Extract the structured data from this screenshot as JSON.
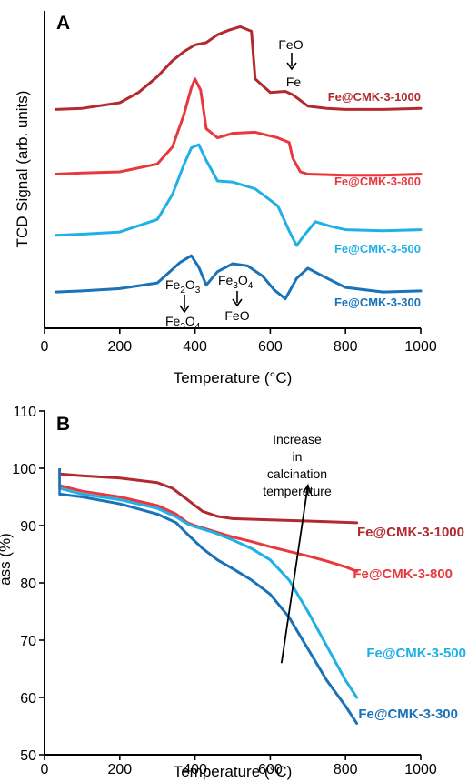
{
  "colors": {
    "fe1000": "#b22a2e",
    "fe800": "#e8373d",
    "fe500": "#1fb0e6",
    "fe300": "#1a72b8",
    "axis": "#000000"
  },
  "chart_data": [
    {
      "panel": "A",
      "type": "line",
      "xlabel": "Temperature (°C)",
      "ylabel": "TCD Signal (arb. units)",
      "xlim": [
        0,
        1000
      ],
      "xticks": [
        0,
        200,
        400,
        600,
        800,
        1000
      ],
      "yticks_shown": false,
      "y_units": "arbitrary, curves vertically offset",
      "series": [
        {
          "name": "Fe@CMK-3-1000",
          "color": "#b22a2e",
          "x": [
            30,
            100,
            200,
            250,
            300,
            340,
            370,
            400,
            430,
            460,
            490,
            520,
            550,
            560,
            600,
            640,
            660,
            700,
            750,
            800,
            900,
            1000
          ],
          "y": [
            12.05,
            12.1,
            12.35,
            12.8,
            13.5,
            14.2,
            14.6,
            14.9,
            15.0,
            15.35,
            15.55,
            15.7,
            15.5,
            13.4,
            12.8,
            12.85,
            12.7,
            12.2,
            12.1,
            12.05,
            12.05,
            12.1
          ]
        },
        {
          "name": "Fe@CMK-3-800",
          "color": "#e8373d",
          "x": [
            30,
            100,
            200,
            300,
            340,
            370,
            390,
            400,
            415,
            430,
            460,
            500,
            560,
            620,
            650,
            660,
            680,
            700,
            800,
            900,
            1000
          ],
          "y": [
            9.2,
            9.25,
            9.3,
            9.65,
            10.4,
            11.8,
            13.0,
            13.4,
            12.9,
            11.2,
            10.8,
            11.0,
            11.05,
            10.8,
            10.6,
            9.9,
            9.3,
            9.2,
            9.15,
            9.15,
            9.2
          ]
        },
        {
          "name": "Fe@CMK-3-500",
          "color": "#1fb0e6",
          "x": [
            30,
            100,
            200,
            300,
            340,
            370,
            390,
            410,
            430,
            460,
            500,
            560,
            620,
            650,
            670,
            690,
            720,
            760,
            800,
            900,
            1000
          ],
          "y": [
            6.5,
            6.55,
            6.65,
            7.2,
            8.3,
            9.6,
            10.35,
            10.5,
            9.8,
            8.9,
            8.85,
            8.55,
            7.8,
            6.7,
            6.05,
            6.5,
            7.1,
            6.9,
            6.75,
            6.7,
            6.75
          ]
        },
        {
          "name": "Fe@CMK-3-300",
          "color": "#1a72b8",
          "x": [
            30,
            100,
            200,
            300,
            360,
            390,
            410,
            430,
            460,
            500,
            540,
            580,
            610,
            640,
            670,
            700,
            740,
            800,
            900,
            1000
          ],
          "y": [
            4.0,
            4.05,
            4.15,
            4.4,
            5.3,
            5.6,
            5.1,
            4.3,
            4.9,
            5.25,
            5.15,
            4.7,
            4.1,
            3.7,
            4.6,
            5.05,
            4.7,
            4.2,
            4.0,
            4.05
          ]
        }
      ],
      "annotations": {
        "feo_top": "FeO",
        "fe_top": "Fe",
        "fe2o3_base": "Fe",
        "fe2o3_sub": "2",
        "fe2o3_o": "O",
        "fe2o3_sub2": "3",
        "fe3o4_base": "Fe",
        "fe3o4_sub": "3",
        "fe3o4_o": "O",
        "fe3o4_sub2": "4",
        "feo_bottom": "FeO"
      }
    },
    {
      "panel": "B",
      "type": "line",
      "xlabel": "Temperature (°C)",
      "ylabel": "",
      "xlim": [
        0,
        1000
      ],
      "ylim": [
        50,
        110
      ],
      "xticks": [
        0,
        200,
        400,
        600,
        800,
        1000
      ],
      "yticks": [
        50,
        60,
        70,
        80,
        90,
        100,
        110
      ],
      "series": [
        {
          "name": "Fe@CMK-3-1000",
          "color": "#b22a2e",
          "x": [
            40,
            100,
            200,
            300,
            340,
            380,
            420,
            460,
            500,
            600,
            700,
            830
          ],
          "y": [
            99.0,
            98.7,
            98.3,
            97.5,
            96.5,
            94.5,
            92.5,
            91.6,
            91.2,
            91.0,
            90.8,
            90.5
          ]
        },
        {
          "name": "Fe@CMK-3-800",
          "color": "#e8373d",
          "x": [
            40,
            100,
            200,
            300,
            350,
            380,
            400,
            450,
            500,
            550,
            600,
            650,
            700,
            750,
            800,
            830
          ],
          "y": [
            97.0,
            96.0,
            95.0,
            93.5,
            92.0,
            90.5,
            90.0,
            89.0,
            88.0,
            87.2,
            86.3,
            85.5,
            84.7,
            83.8,
            82.8,
            82.0
          ]
        },
        {
          "name": "Fe@CMK-3-500",
          "color": "#1fb0e6",
          "x": [
            40,
            100,
            200,
            300,
            350,
            380,
            400,
            450,
            500,
            550,
            600,
            650,
            700,
            750,
            800,
            830
          ],
          "y": [
            96.5,
            95.5,
            94.5,
            93.0,
            91.5,
            90.3,
            89.8,
            88.8,
            87.5,
            86.0,
            84.0,
            80.5,
            75.0,
            69.0,
            63.0,
            60.0
          ]
        },
        {
          "name": "Fe@CMK-3-300",
          "color": "#1a72b8",
          "x": [
            40,
            100,
            200,
            300,
            350,
            380,
            420,
            460,
            500,
            550,
            600,
            650,
            700,
            750,
            800,
            830
          ],
          "y": [
            95.5,
            95.0,
            93.8,
            92.0,
            90.5,
            88.5,
            86.0,
            84.0,
            82.5,
            80.5,
            78.0,
            74.0,
            68.5,
            63.0,
            58.5,
            55.5
          ]
        }
      ],
      "annotations": {
        "trend_line1": "Increase",
        "trend_line2": "in",
        "trend_line3": "calcination",
        "trend_line4": "temperature",
        "trend_arrow_from": [
          630,
          66
        ],
        "trend_arrow_to": [
          700,
          97
        ]
      }
    }
  ],
  "panel_labels": {
    "a": "A",
    "b": "B"
  },
  "legend_a": [
    "Fe@CMK-3-1000",
    "Fe@CMK-3-800",
    "Fe@CMK-3-500",
    "Fe@CMK-3-300"
  ],
  "legend_b": [
    "Fe@CMK-3-1000",
    "Fe@CMK-3-800",
    "Fe@CMK-3-500",
    "Fe@CMK-3-300"
  ],
  "b_ylabel_fragment": "ass (%)"
}
